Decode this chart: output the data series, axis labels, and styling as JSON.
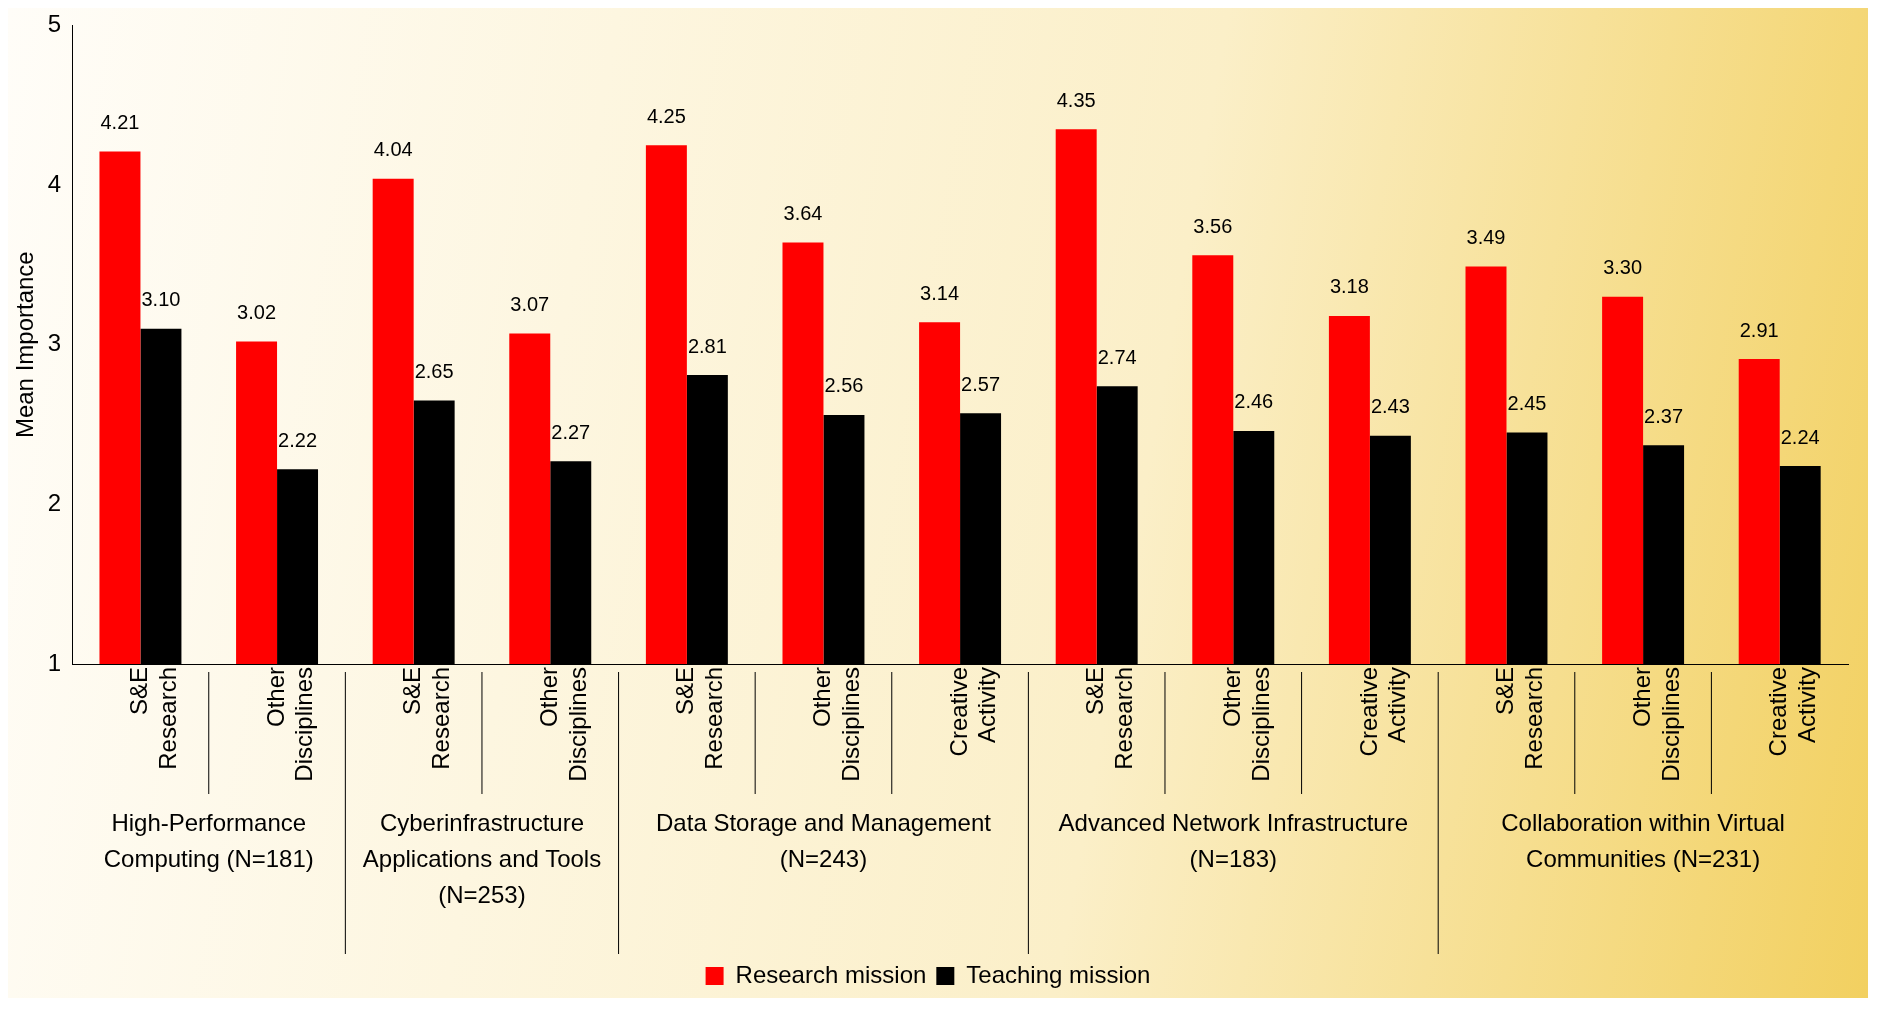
{
  "chart_data": {
    "type": "bar",
    "ylabel": "Mean Importance",
    "categories": [
      "S&E Research",
      "Other Disciplines",
      "S&E Research",
      "Other Disciplines",
      "S&E Research",
      "Other Disciplines",
      "Creative Activity",
      "S&E Research",
      "Other Disciplines",
      "Creative Activity",
      "S&E Research",
      "Other Disciplines",
      "Creative Activity"
    ],
    "series": [
      {
        "name": "Research mission",
        "color": "#ff0000",
        "values": [
          4.21,
          3.02,
          4.04,
          3.07,
          4.25,
          3.64,
          3.14,
          4.35,
          3.56,
          3.18,
          3.49,
          3.3,
          2.91
        ],
        "value_labels": [
          "4.21",
          "3.02",
          "4.04",
          "3.07",
          "4.25",
          "3.64",
          "3.14",
          "4.35",
          "3.56",
          "3.18",
          "3.49",
          "3.30",
          "2.91"
        ]
      },
      {
        "name": "Teaching mission",
        "color": "#000000",
        "values": [
          3.1,
          2.22,
          2.65,
          2.27,
          2.81,
          2.56,
          2.57,
          2.74,
          2.46,
          2.43,
          2.45,
          2.37,
          2.24
        ],
        "value_labels": [
          "3.10",
          "2.22",
          "2.65",
          "2.27",
          "2.81",
          "2.56",
          "2.57",
          "2.74",
          "2.46",
          "2.43",
          "2.45",
          "2.37",
          "2.24"
        ]
      }
    ],
    "annotations": [
      "High-Performance Computing (N=181)",
      "Cyberinfrastructure Applications and Tools (N=253)",
      "Data Storage and Management (N=243)",
      "Advanced Network Infrastructure (N=183)",
      "Collaboration within Virtual Communities (N=231)"
    ],
    "ylim": [
      1,
      5
    ],
    "yticks": [
      1,
      2,
      3,
      4,
      5
    ],
    "grid": false,
    "legend": "bottom"
  }
}
